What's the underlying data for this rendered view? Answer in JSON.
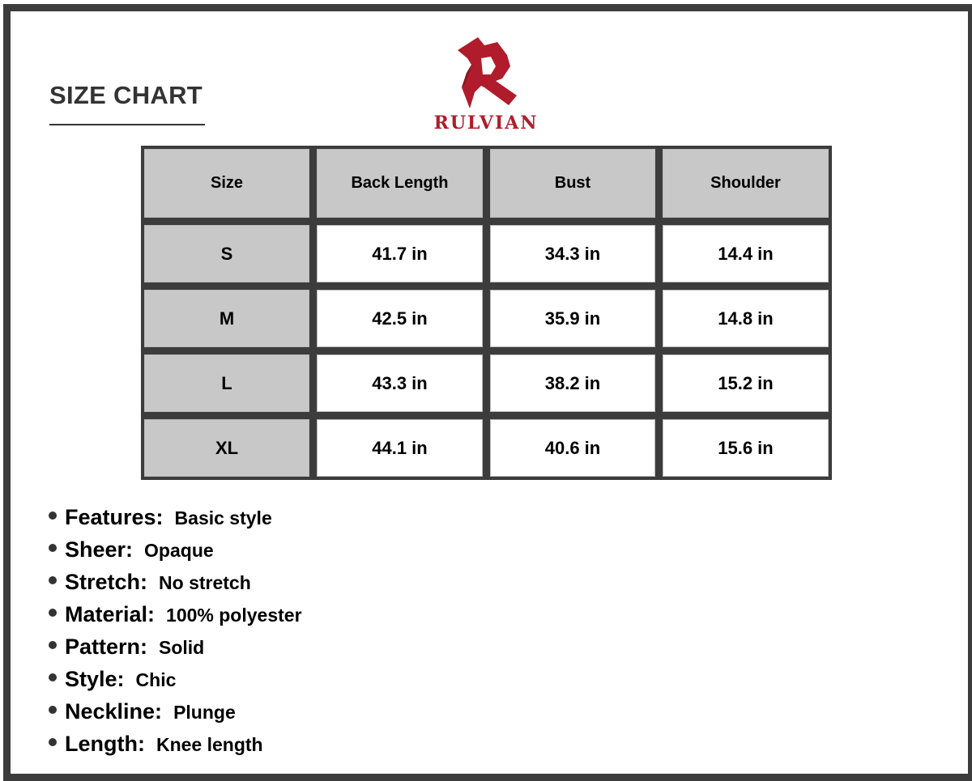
{
  "title": "SIZE CHART",
  "brand": {
    "name": "RULVIAN",
    "color": "#b01c2b"
  },
  "table": {
    "headers": [
      "Size",
      "Back Length",
      "Bust",
      "Shoulder"
    ],
    "rows": [
      [
        "S",
        "41.7 in",
        "34.3 in",
        "14.4 in"
      ],
      [
        "M",
        "42.5 in",
        "35.9 in",
        "14.8 in"
      ],
      [
        "L",
        "43.3 in",
        "38.2 in",
        "15.2 in"
      ],
      [
        "XL",
        "44.1 in",
        "40.6 in",
        "15.6 in"
      ]
    ]
  },
  "features": [
    {
      "label": "Features:",
      "value": "Basic style"
    },
    {
      "label": "Sheer:",
      "value": "Opaque"
    },
    {
      "label": "Stretch:",
      "value": "No stretch"
    },
    {
      "label": "Material:",
      "value": "100% polyester"
    },
    {
      "label": "Pattern:",
      "value": "Solid"
    },
    {
      "label": "Style:",
      "value": "Chic"
    },
    {
      "label": "Neckline:",
      "value": "Plunge"
    },
    {
      "label": "Length:",
      "value": "Knee length"
    }
  ]
}
